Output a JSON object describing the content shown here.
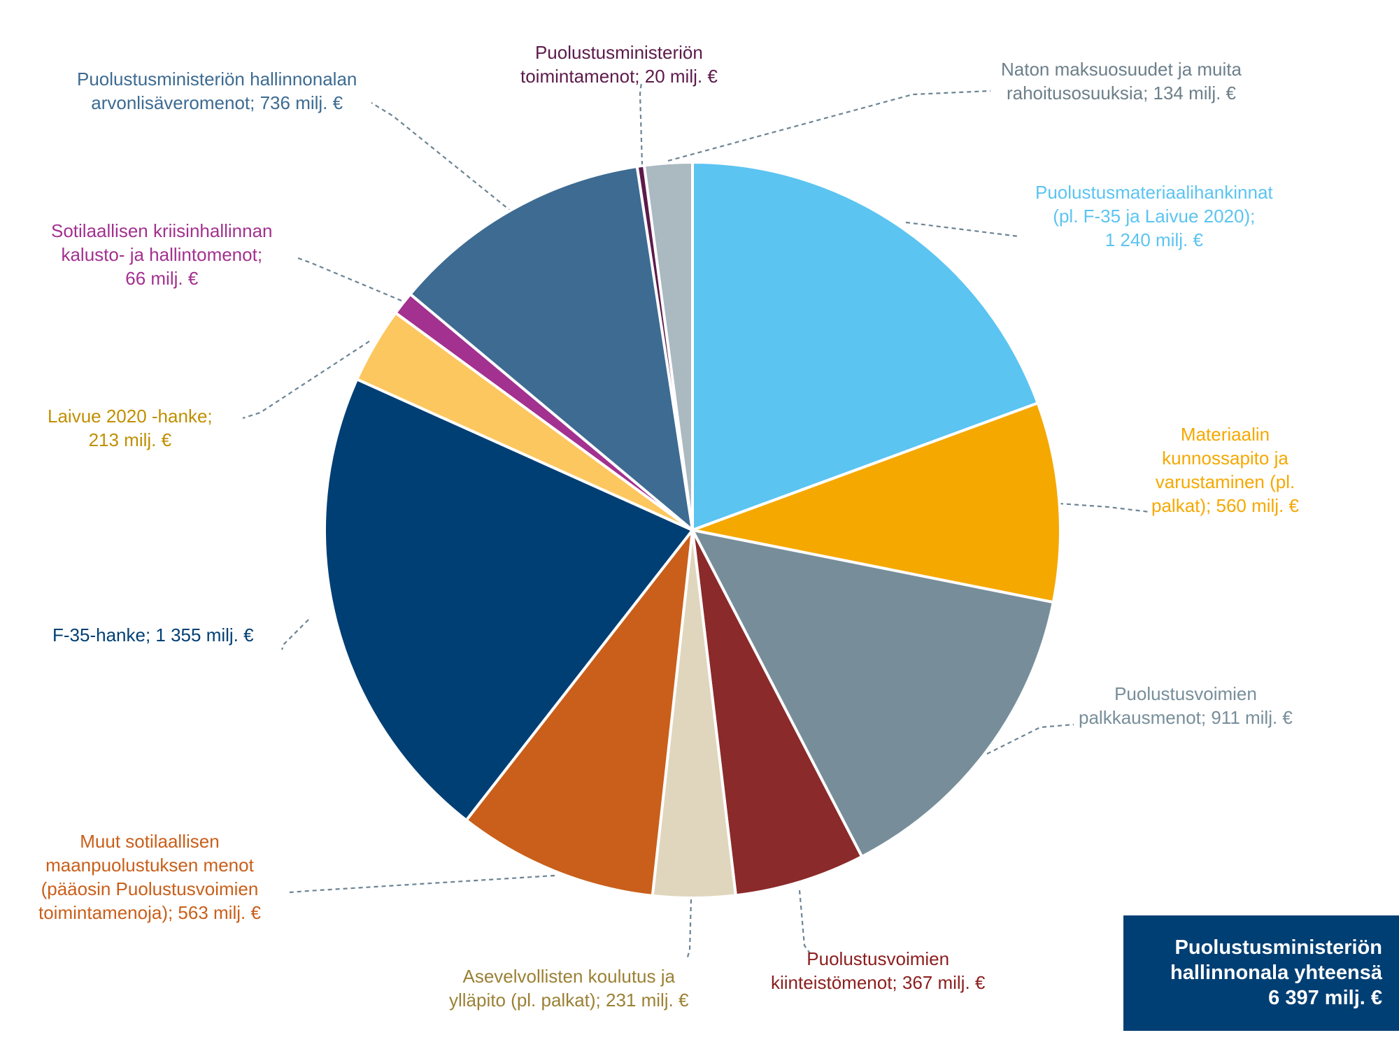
{
  "chart_data": {
    "type": "pie",
    "title": "",
    "unit": "milj. €",
    "start": "12 o'clock, clockwise",
    "slices": [
      {
        "key": "materiaalihankinnat",
        "value": 1240,
        "color": "#5bc4f1",
        "lines": [
          "Puolustusmateriaalihankinnat",
          "(pl. F-35 ja Laivue 2020);",
          "1 240 milj. €"
        ]
      },
      {
        "key": "kunnossapito",
        "value": 560,
        "color": "#f5a800",
        "lines": [
          "Materiaalin",
          "kunnossapito ja",
          "varustaminen (pl.",
          "palkat); 560 milj. €"
        ]
      },
      {
        "key": "palkkausmenot",
        "value": 911,
        "color": "#778e9a",
        "lines": [
          "Puolustusvoimien",
          "palkkausmenot; 911 milj. €"
        ]
      },
      {
        "key": "kiinteistomenot",
        "value": 367,
        "color": "#8b2a2a",
        "lines": [
          "Puolustusvoimien",
          "kiinteistömenot; 367 milj. €"
        ]
      },
      {
        "key": "asevelvollisten",
        "value": 231,
        "color": "#e0d6bd",
        "lines": [
          "Asevelvollisten koulutus ja",
          "ylläpito (pl. palkat); 231 milj. €"
        ]
      },
      {
        "key": "muut",
        "value": 563,
        "color": "#c95f1a",
        "lines": [
          "Muut sotilaallisen",
          "maanpuolustuksen menot",
          "(pääosin Puolustusvoimien",
          "toimintamenoja); 563 milj. €"
        ]
      },
      {
        "key": "f35",
        "value": 1355,
        "color": "#003f74",
        "lines": [
          "F-35-hanke; 1 355 milj. €"
        ]
      },
      {
        "key": "laivue",
        "value": 213,
        "color": "#fdc75f",
        "lines": [
          "Laivue 2020 -hanke;",
          "213 milj. €"
        ]
      },
      {
        "key": "kriisinhallinta",
        "value": 66,
        "color": "#a2318f",
        "lines": [
          "Sotilaallisen kriisinhallinnan",
          "kalusto- ja hallintomenot;",
          "66 milj. €"
        ]
      },
      {
        "key": "arvonlisavero",
        "value": 736,
        "color": "#3d6b92",
        "lines": [
          "Puolustusministeriön hallinnonalan",
          "arvonlisäveromenot; 736 milj. €"
        ]
      },
      {
        "key": "toimintamenot",
        "value": 20,
        "color": "#5c1a4a",
        "lines": [
          "Puolustusministeriön",
          "toimintamenot; 20 milj. €"
        ]
      },
      {
        "key": "naton",
        "value": 134,
        "color": "#abb9c1",
        "lines": [
          "Naton maksuosuudet ja muita",
          "rahoitusosuuksia; 134 milj. €"
        ]
      }
    ],
    "label_colors": {
      "materiaalihankinnat": "#5bc4f1",
      "kunnossapito": "#f5a800",
      "palkkausmenot": "#778e9a",
      "kiinteistomenot": "#8b1e1e",
      "asevelvollisten": "#9b8135",
      "muut": "#c95f1a",
      "f35": "#003f74",
      "laivue": "#c08f00",
      "kriisinhallinta": "#a2318f",
      "arvonlisavero": "#3d6b92",
      "toimintamenot": "#5c1a4a",
      "naton": "#6c7f8a"
    },
    "total_box": {
      "lines": [
        "Puolustusministeriön",
        "hallinnonala yhteensä",
        "6 397 milj. €"
      ],
      "background": "#003f74"
    }
  }
}
